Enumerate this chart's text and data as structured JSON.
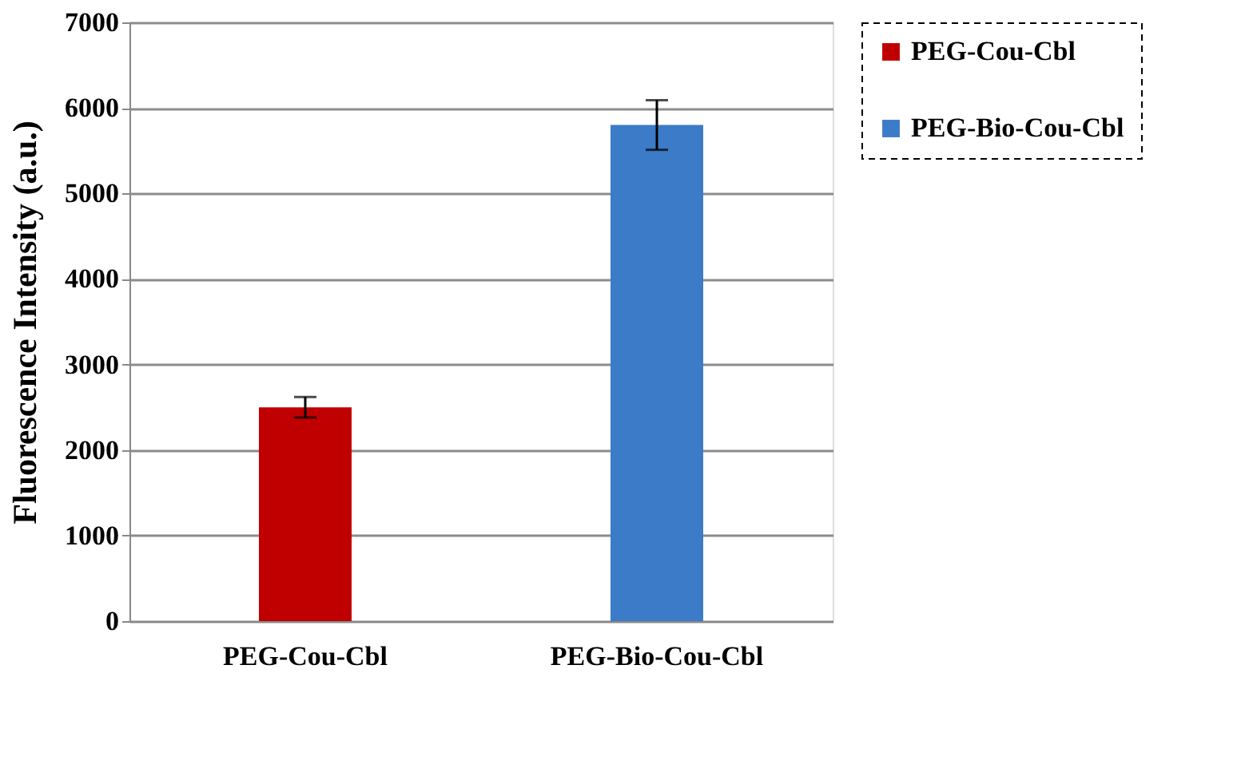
{
  "chart_data": {
    "type": "bar",
    "ylabel": "Fluorescence Intensity (a.u.)",
    "categories": [
      "PEG-Cou-Cbl",
      "PEG-Bio-Cou-Cbl"
    ],
    "series": [
      {
        "name": "PEG-Cou-Cbl",
        "color": "#c00000",
        "values": [
          2500,
          null
        ],
        "errors": [
          120,
          null
        ]
      },
      {
        "name": "PEG-Bio-Cou-Cbl",
        "color": "#3c7bc8",
        "values": [
          null,
          5800
        ],
        "errors": [
          null,
          290
        ]
      }
    ],
    "ylim": [
      0,
      7000
    ],
    "yticks": [
      0,
      1000,
      2000,
      3000,
      4000,
      5000,
      6000,
      7000
    ],
    "grid": "y",
    "legend": "right"
  }
}
